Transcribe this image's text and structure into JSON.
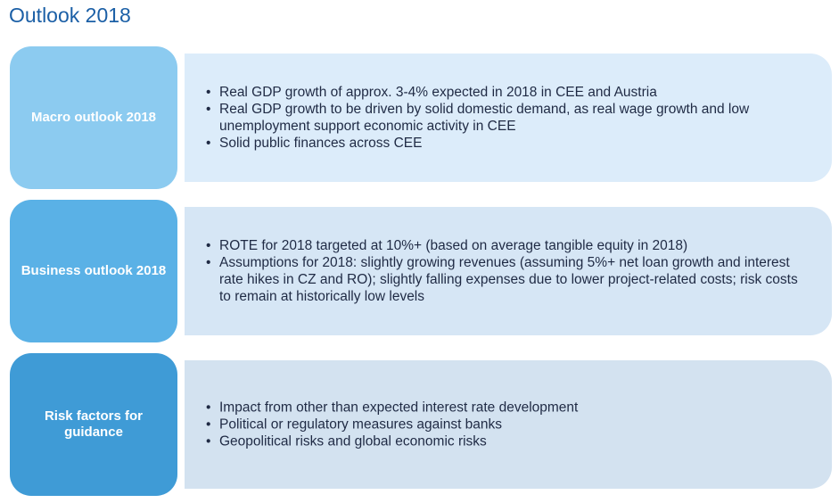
{
  "page": {
    "title": "Outlook 2018"
  },
  "sections": [
    {
      "label": "Macro outlook 2018",
      "bullets": [
        "Real GDP growth of approx. 3-4% expected in 2018 in CEE and Austria",
        "Real GDP growth to be driven by solid domestic demand, as real wage growth and low unemployment support economic activity in CEE",
        "Solid public finances across CEE"
      ]
    },
    {
      "label": "Business outlook 2018",
      "bullets": [
        "ROTE for 2018 targeted at 10%+ (based on average tangible equity in 2018)",
        "Assumptions for 2018: slightly growing revenues (assuming 5%+ net loan growth and interest rate hikes in CZ and RO); slightly falling expenses due to lower project-related costs; risk costs to remain at historically low levels"
      ]
    },
    {
      "label": "Risk factors for guidance",
      "bullets": [
        "Impact from other than expected interest rate development",
        "Political or regulatory measures against banks",
        "Geopolitical risks and global economic risks"
      ]
    }
  ]
}
